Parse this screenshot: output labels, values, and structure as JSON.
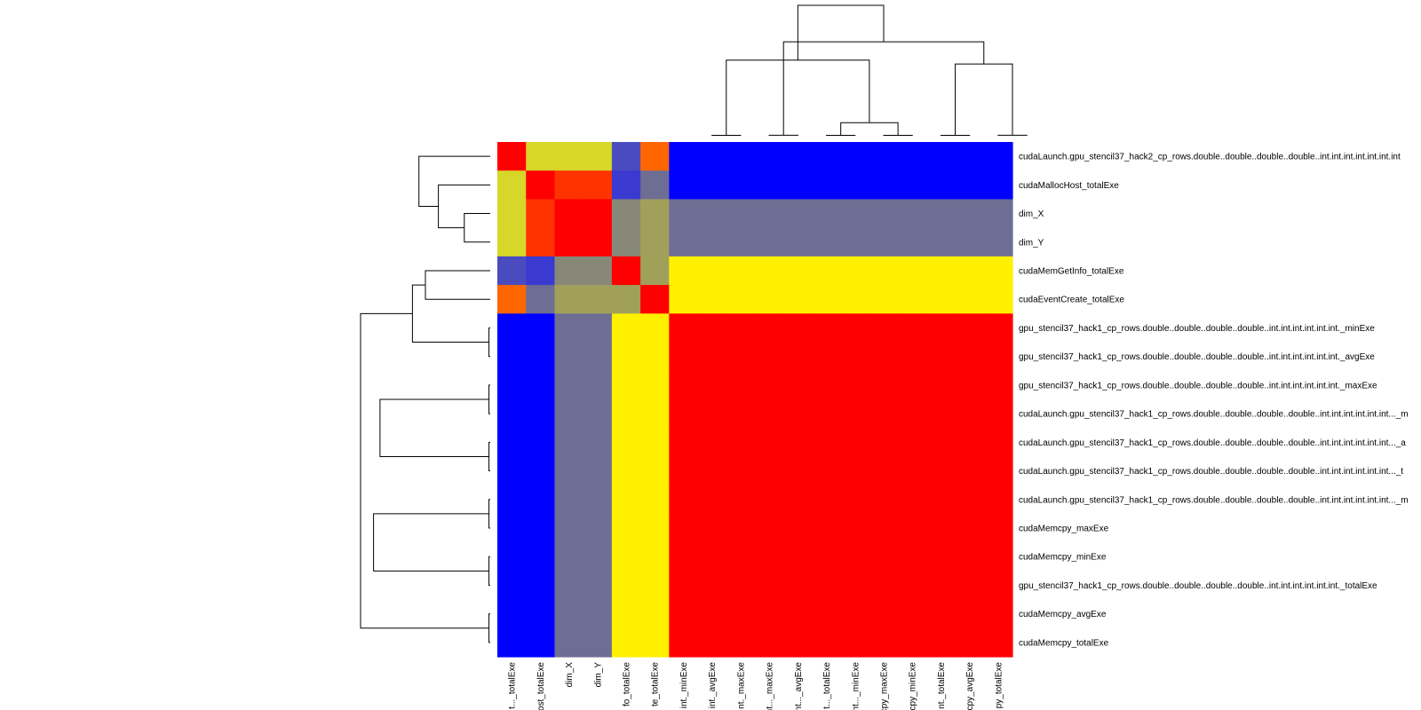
{
  "chart_data": {
    "type": "heatmap",
    "title": "",
    "xlabel": "",
    "ylabel": "",
    "row_labels": [
      "cudaLaunch.gpu_stencil37_hack2_cp_rows.double..double..double..double..int.int.int.int.int.int.int",
      "cudaMallocHost_totalExe",
      "dim_X",
      "dim_Y",
      "cudaMemGetInfo_totalExe",
      "cudaEventCreate_totalExe",
      "gpu_stencil37_hack1_cp_rows.double..double..double..double..int.int.int.int.int.int._minExe",
      "gpu_stencil37_hack1_cp_rows.double..double..double..double..int.int.int.int.int.int._avgExe",
      "gpu_stencil37_hack1_cp_rows.double..double..double..double..int.int.int.int.int.int._maxExe",
      "cudaLaunch.gpu_stencil37_hack1_cp_rows.double..double..double..double..int.int.int.int.int.int..._m",
      "cudaLaunch.gpu_stencil37_hack1_cp_rows.double..double..double..double..int.int.int.int.int.int..._a",
      "cudaLaunch.gpu_stencil37_hack1_cp_rows.double..double..double..double..int.int.int.int.int.int..._t",
      "cudaLaunch.gpu_stencil37_hack1_cp_rows.double..double..double..double..int.int.int.int.int.int..._m",
      "cudaMemcpy_maxExe",
      "cudaMemcpy_minExe",
      "gpu_stencil37_hack1_cp_rows.double..double..double..double..int.int.int.int.int.int._totalExe",
      "cudaMemcpy_avgExe",
      "cudaMemcpy_totalExe"
    ],
    "col_labels": [
      "...t..._totalExe",
      "...ost_totalExe",
      "dim_X",
      "dim_Y",
      "...fo_totalExe",
      "...te_totalExe",
      "...int._minExe",
      "...int._avgExe",
      "...nt._maxExe",
      "...nt..._maxExe",
      "...nt..._avgExe",
      "...t..._totalExe",
      "...nt..._minExe",
      "...cpy_maxExe",
      "...cpy_minExe",
      "...nt._totalExe",
      "...cpy_avgExe",
      "...py_totalExe"
    ],
    "palette": [
      "#0000ff",
      "#4b4bc0",
      "#3a3ad0",
      "#6e6e94",
      "#888878",
      "#a0a05a",
      "#d7d729",
      "#fff000",
      "#ff6600",
      "#ff3300",
      "#ff0000"
    ],
    "color_index": [
      [
        10,
        6,
        6,
        6,
        1,
        8,
        0,
        0,
        0,
        0,
        0,
        0,
        0,
        0,
        0,
        0,
        0,
        0
      ],
      [
        6,
        10,
        9,
        9,
        2,
        3,
        0,
        0,
        0,
        0,
        0,
        0,
        0,
        0,
        0,
        0,
        0,
        0
      ],
      [
        6,
        9,
        10,
        10,
        4,
        5,
        3,
        3,
        3,
        3,
        3,
        3,
        3,
        3,
        3,
        3,
        3,
        3
      ],
      [
        6,
        9,
        10,
        10,
        4,
        5,
        3,
        3,
        3,
        3,
        3,
        3,
        3,
        3,
        3,
        3,
        3,
        3
      ],
      [
        1,
        2,
        4,
        4,
        10,
        5,
        7,
        7,
        7,
        7,
        7,
        7,
        7,
        7,
        7,
        7,
        7,
        7
      ],
      [
        8,
        3,
        5,
        5,
        5,
        10,
        7,
        7,
        7,
        7,
        7,
        7,
        7,
        7,
        7,
        7,
        7,
        7
      ],
      [
        0,
        0,
        3,
        3,
        7,
        7,
        10,
        10,
        10,
        10,
        10,
        10,
        10,
        10,
        10,
        10,
        10,
        10
      ],
      [
        0,
        0,
        3,
        3,
        7,
        7,
        10,
        10,
        10,
        10,
        10,
        10,
        10,
        10,
        10,
        10,
        10,
        10
      ],
      [
        0,
        0,
        3,
        3,
        7,
        7,
        10,
        10,
        10,
        10,
        10,
        10,
        10,
        10,
        10,
        10,
        10,
        10
      ],
      [
        0,
        0,
        3,
        3,
        7,
        7,
        10,
        10,
        10,
        10,
        10,
        10,
        10,
        10,
        10,
        10,
        10,
        10
      ],
      [
        0,
        0,
        3,
        3,
        7,
        7,
        10,
        10,
        10,
        10,
        10,
        10,
        10,
        10,
        10,
        10,
        10,
        10
      ],
      [
        0,
        0,
        3,
        3,
        7,
        7,
        10,
        10,
        10,
        10,
        10,
        10,
        10,
        10,
        10,
        10,
        10,
        10
      ],
      [
        0,
        0,
        3,
        3,
        7,
        7,
        10,
        10,
        10,
        10,
        10,
        10,
        10,
        10,
        10,
        10,
        10,
        10
      ],
      [
        0,
        0,
        3,
        3,
        7,
        7,
        10,
        10,
        10,
        10,
        10,
        10,
        10,
        10,
        10,
        10,
        10,
        10
      ],
      [
        0,
        0,
        3,
        3,
        7,
        7,
        10,
        10,
        10,
        10,
        10,
        10,
        10,
        10,
        10,
        10,
        10,
        10
      ],
      [
        0,
        0,
        3,
        3,
        7,
        7,
        10,
        10,
        10,
        10,
        10,
        10,
        10,
        10,
        10,
        10,
        10,
        10
      ],
      [
        0,
        0,
        3,
        3,
        7,
        7,
        10,
        10,
        10,
        10,
        10,
        10,
        10,
        10,
        10,
        10,
        10,
        10
      ],
      [
        0,
        0,
        3,
        3,
        7,
        7,
        10,
        10,
        10,
        10,
        10,
        10,
        10,
        10,
        10,
        10,
        10,
        10
      ]
    ],
    "col_dendrogram": {
      "merges": [
        [
          7,
          8,
          0.003
        ],
        [
          9,
          10,
          0.004
        ],
        [
          11,
          12,
          0.003
        ],
        [
          13,
          14,
          0.003
        ],
        [
          15,
          16,
          0.003
        ],
        [
          17,
          18,
          0.004
        ],
        [
          -3,
          -4,
          0.1
        ],
        [
          -5,
          -6,
          0.55
        ],
        [
          -1,
          -7,
          0.58
        ],
        [
          -8,
          -2,
          0.72
        ],
        [
          -9,
          -10,
          1.0
        ]
      ],
      "leaf_order": [
        0,
        1,
        2,
        3,
        4,
        5,
        6,
        7,
        8,
        9,
        10,
        11,
        12,
        13,
        14,
        15,
        16,
        17
      ]
    },
    "row_dendrogram": {
      "merges": [
        [
          2,
          3,
          0.2
        ],
        [
          1,
          -1,
          0.4
        ],
        [
          0,
          -2,
          0.55
        ],
        [
          4,
          5,
          0.5
        ],
        [
          6,
          7,
          0.01
        ],
        [
          8,
          9,
          0.01
        ],
        [
          10,
          11,
          0.01
        ],
        [
          12,
          13,
          0.01
        ],
        [
          14,
          15,
          0.01
        ],
        [
          16,
          17,
          0.01
        ],
        [
          -4,
          -5,
          0.6
        ],
        [
          -7,
          -6,
          0.85
        ],
        [
          -8,
          -9,
          0.9
        ],
        [
          -10,
          -11,
          1.0
        ]
      ]
    }
  }
}
